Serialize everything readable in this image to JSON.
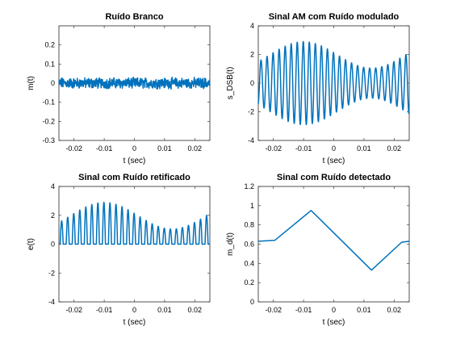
{
  "figure": {
    "background": "#ffffff",
    "line_color": "#0072BD"
  },
  "chart_data": [
    {
      "type": "line",
      "id": "noise",
      "title": "Ruído Branco",
      "xlabel": "t (sec)",
      "ylabel": "m(t)",
      "xlim": [
        -0.025,
        0.025
      ],
      "ylim": [
        -0.3,
        0.3
      ],
      "xticks": [
        -0.02,
        -0.01,
        0,
        0.01,
        0.02
      ],
      "xtick_labels": [
        "-0.02",
        "-0.01",
        "0",
        "0.01",
        "0.02"
      ],
      "yticks": [
        -0.3,
        -0.2,
        -0.1,
        0,
        0.1,
        0.2
      ],
      "ytick_labels": [
        "-0.3",
        "-0.2",
        "-0.1",
        "0",
        "0.1",
        "0.2"
      ],
      "grid": false,
      "series": [
        {
          "color": "#0072BD",
          "shape": "white noise about 0, peak amplitude about 0.03"
        }
      ]
    },
    {
      "type": "line",
      "id": "dsb",
      "title": "Sinal AM com Ruído modulado",
      "xlabel": "t (sec)",
      "ylabel": "s_DSB(t)",
      "xlim": [
        -0.025,
        0.025
      ],
      "ylim": [
        -4,
        4
      ],
      "xticks": [
        -0.02,
        -0.01,
        0,
        0.01,
        0.02
      ],
      "xtick_labels": [
        "-0.02",
        "-0.01",
        "0",
        "0.01",
        "0.02"
      ],
      "yticks": [
        -4,
        -2,
        0,
        2,
        4
      ],
      "ytick_labels": [
        "-4",
        "-2",
        "0",
        "2",
        "4"
      ],
      "grid": false,
      "series": [
        {
          "color": "#0072BD",
          "carrier_cycles_per_sec": 500,
          "envelope_t": [
            -0.025,
            -0.01,
            0.0125,
            0.025
          ],
          "envelope_y": [
            1.95,
            2.9,
            1.05,
            1.95
          ]
        }
      ]
    },
    {
      "type": "line",
      "id": "rectified",
      "title": "Sinal com Ruído retificado",
      "xlabel": "t (sec)",
      "ylabel": "e(t)",
      "xlim": [
        -0.025,
        0.025
      ],
      "ylim": [
        -4,
        4
      ],
      "xticks": [
        -0.02,
        -0.01,
        0,
        0.01,
        0.02
      ],
      "xtick_labels": [
        "-0.02",
        "-0.01",
        "0",
        "0.01",
        "0.02"
      ],
      "yticks": [
        -4,
        -2,
        0,
        2,
        4
      ],
      "ytick_labels": [
        "-4",
        "-2",
        "0",
        "2",
        "4"
      ],
      "grid": false,
      "series": [
        {
          "color": "#0072BD",
          "carrier_cycles_per_sec": 500,
          "envelope_t": [
            -0.025,
            -0.01,
            0.0125,
            0.025
          ],
          "envelope_y": [
            1.95,
            2.9,
            1.05,
            1.95
          ]
        }
      ]
    },
    {
      "type": "line",
      "id": "detected",
      "title": "Sinal com Ruído detectado",
      "xlabel": "t (sec)",
      "ylabel": "m_d(t)",
      "xlim": [
        -0.025,
        0.025
      ],
      "ylim": [
        0,
        1.2
      ],
      "xticks": [
        -0.02,
        -0.01,
        0,
        0.01,
        0.02
      ],
      "xtick_labels": [
        "-0.02",
        "-0.01",
        "0",
        "0.01",
        "0.02"
      ],
      "yticks": [
        0,
        0.2,
        0.4,
        0.6,
        0.8,
        1,
        1.2
      ],
      "ytick_labels": [
        "0",
        "0.2",
        "0.4",
        "0.6",
        "0.8",
        "1",
        "1.2"
      ],
      "grid": false,
      "series": [
        {
          "color": "#0072BD",
          "x": [
            -0.025,
            -0.0195,
            -0.0075,
            0.0125,
            0.0225,
            0.025
          ],
          "y": [
            0.63,
            0.64,
            0.95,
            0.33,
            0.62,
            0.63
          ]
        }
      ]
    }
  ]
}
